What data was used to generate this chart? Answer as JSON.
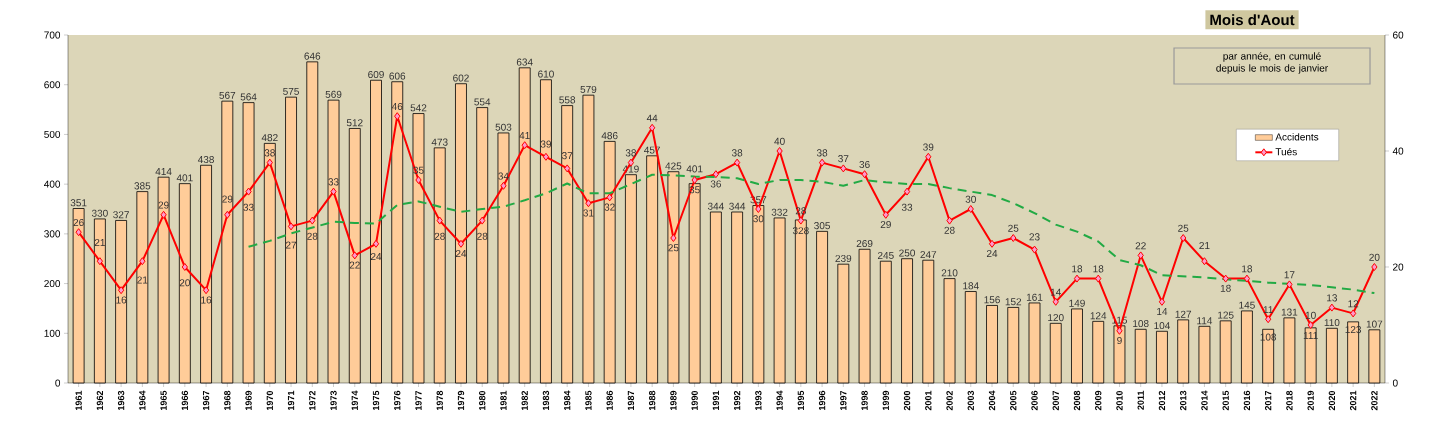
{
  "chart_data": {
    "type": "bar",
    "title": "Mois d'Aout",
    "subtitle": "par année, en cumulé depuis le mois de janvier",
    "categories": [
      "1961",
      "1962",
      "1963",
      "1964",
      "1965",
      "1966",
      "1967",
      "1968",
      "1969",
      "1970",
      "1971",
      "1972",
      "1973",
      "1974",
      "1975",
      "1976",
      "1977",
      "1978",
      "1979",
      "1980",
      "1981",
      "1982",
      "1983",
      "1984",
      "1985",
      "1986",
      "1987",
      "1988",
      "1989",
      "1990",
      "1991",
      "1992",
      "1993",
      "1994",
      "1995",
      "1996",
      "1997",
      "1998",
      "1999",
      "2000",
      "2001",
      "2002",
      "2003",
      "2004",
      "2005",
      "2006",
      "2007",
      "2008",
      "2009",
      "2010",
      "2011",
      "2012",
      "2013",
      "2014",
      "2015",
      "2016",
      "2017",
      "2018",
      "2019",
      "2020",
      "2021",
      "2022"
    ],
    "series": [
      {
        "name": "Accidents",
        "color": "#ffcc99",
        "values": [
          351,
          330,
          327,
          385,
          414,
          401,
          438,
          567,
          564,
          482,
          575,
          646,
          569,
          512,
          609,
          606,
          542,
          473,
          602,
          554,
          503,
          634,
          610,
          558,
          579,
          486,
          419,
          457,
          425,
          401,
          344,
          344,
          357,
          332,
          328,
          305,
          239,
          269,
          245,
          250,
          247,
          210,
          184,
          156,
          152,
          161,
          120,
          149,
          124,
          115,
          108,
          104,
          127,
          114,
          125,
          145,
          108,
          131,
          111,
          110,
          123,
          107
        ],
        "value_labels": [
          "351",
          "330",
          "327",
          "385",
          "414",
          "401",
          "438",
          "567",
          "564",
          "482",
          "575",
          "646",
          "569",
          "512",
          "609",
          "606",
          "542",
          "473",
          "602",
          "554",
          "503",
          "634",
          "610",
          "558",
          "579",
          "486",
          "419",
          "457",
          "425",
          "401",
          "344",
          "344",
          "357",
          "332",
          "328",
          "305",
          "239",
          "269",
          "245",
          "250",
          "247",
          "210",
          "184",
          "156",
          "152",
          "161",
          "120",
          "149",
          "124",
          "115",
          "108",
          "104",
          "127",
          "114",
          "125",
          "145",
          "108",
          "131",
          "111",
          "110",
          "123",
          "107"
        ]
      },
      {
        "name": "Tués",
        "type": "line",
        "axis": "y2",
        "color": "#ff0000",
        "marker": "diamond",
        "values": [
          26,
          21,
          16,
          21,
          29,
          20,
          16,
          29,
          33,
          38,
          27,
          28,
          33,
          22,
          24,
          46,
          35,
          28,
          24,
          28,
          34,
          41,
          39,
          37,
          31,
          32,
          38,
          44,
          25,
          35,
          36,
          38,
          30,
          40,
          28,
          38,
          37,
          36,
          29,
          33,
          39,
          28,
          30,
          24,
          25,
          23,
          14,
          18,
          18,
          9,
          22,
          14,
          25,
          21,
          18,
          18,
          11,
          17,
          10,
          13,
          12,
          20
        ],
        "value_labels": [
          "26",
          "21",
          "16",
          "21",
          "29",
          "20",
          "16",
          "29",
          "33",
          "38",
          "27",
          "28",
          "33",
          "22",
          "24",
          "46",
          "35",
          "28",
          "24",
          "28",
          "34",
          "41",
          "39",
          "37",
          "31",
          "32",
          "38",
          "44",
          "25",
          "35",
          "36",
          "38",
          "30",
          "40",
          "28",
          "38",
          "37",
          "36",
          "29",
          "33",
          "39",
          "28",
          "30",
          "24",
          "25",
          "23",
          "14",
          "18",
          "18",
          "9",
          "22",
          "14",
          "25",
          "21",
          "18",
          "18",
          "11",
          "17",
          "10",
          "13",
          "12",
          "20"
        ]
      },
      {
        "type": "line",
        "axis": "y2",
        "color": "#22aa44",
        "line_style": "dashed",
        "marker": "none",
        "values": [
          null,
          null,
          null,
          null,
          null,
          null,
          null,
          null,
          23.5,
          24.5,
          25.8,
          26.8,
          27.8,
          27.6,
          27.5,
          30.7,
          31.3,
          30.4,
          29.5,
          30,
          30.4,
          31.5,
          32.7,
          34.4,
          32.7,
          32.7,
          34.3,
          35.9,
          35.8,
          35.6,
          35.5,
          35.3,
          34.3,
          35,
          35,
          34.7,
          34,
          35,
          34.6,
          34.3,
          34.3,
          33.6,
          33,
          32.4,
          31,
          29.3,
          27.3,
          26.1,
          24.4,
          21.2,
          20.3,
          18.6,
          18.4,
          18.2,
          17.9,
          17.6,
          17.3,
          17.1,
          16.9,
          16.5,
          16.1,
          15.5
        ]
      }
    ],
    "ylim": [
      0,
      700
    ],
    "yticks": [
      0,
      100,
      200,
      300,
      400,
      500,
      600,
      700
    ],
    "y2lim": [
      0,
      60
    ],
    "y2ticks": [
      0,
      20,
      40,
      60
    ],
    "legend": "top right"
  }
}
